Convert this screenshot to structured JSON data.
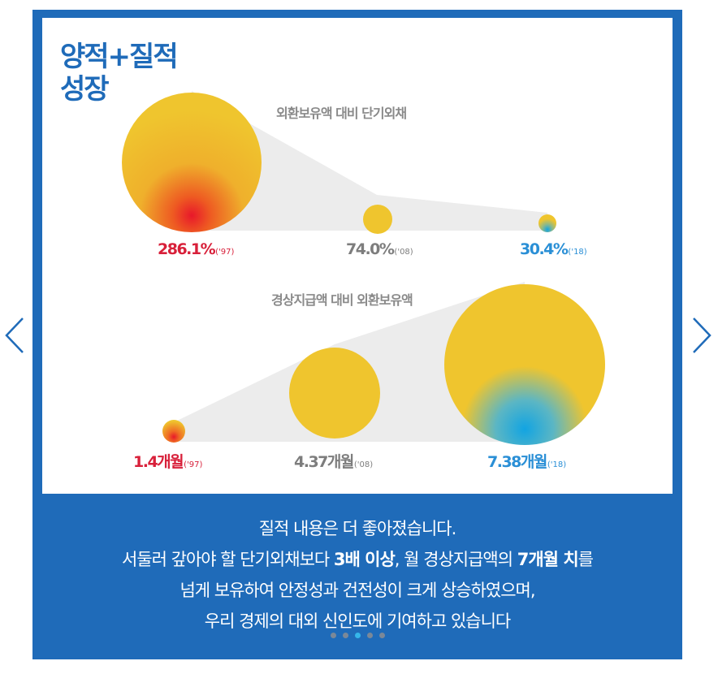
{
  "title_lines": [
    "양적+질적",
    "성장"
  ],
  "chart1": {
    "title": "외환보유액 대비 단기외채",
    "items": [
      {
        "value": "286.1%",
        "year": "('97)",
        "color": "#d8203a"
      },
      {
        "value": "74.0%",
        "year": "('08)",
        "color": "#7d7d7d"
      },
      {
        "value": "30.4%",
        "year": "('18)",
        "color": "#2a8fd6"
      }
    ]
  },
  "chart2": {
    "title": "경상지급액 대비 외환보유액",
    "items": [
      {
        "value": "1.4개월",
        "year": "('97)",
        "color": "#d8203a"
      },
      {
        "value": "4.37개월",
        "year": "('08)",
        "color": "#7d7d7d"
      },
      {
        "value": "7.38개월",
        "year": "('18)",
        "color": "#2a8fd6"
      }
    ]
  },
  "caption": {
    "line1": "질적 내용은 더 좋아졌습니다.",
    "line2_pre": "서둘러 갚아야 할 단기외채보다 ",
    "line2_bold1": "3배 이상",
    "line2_mid": ", 월 경상지급액의 ",
    "line2_bold2": "7개월 치",
    "line2_post": "를",
    "line3": "넘게 보유하여 안정성과 건전성이 크게 상승하였으며,",
    "line4": "우리 경제의 대외 신인도에 기여하고 있습니다"
  },
  "pager": {
    "count": 5,
    "active_index": 2
  },
  "colors": {
    "frame": "#1f6bb9",
    "bubble": "#efc52e",
    "red_glow": "#e8182a",
    "blue_glow": "#12a4e2",
    "trail": "#ececec"
  },
  "icons": {
    "prev": "chevron-left-icon",
    "next": "chevron-right-icon"
  }
}
